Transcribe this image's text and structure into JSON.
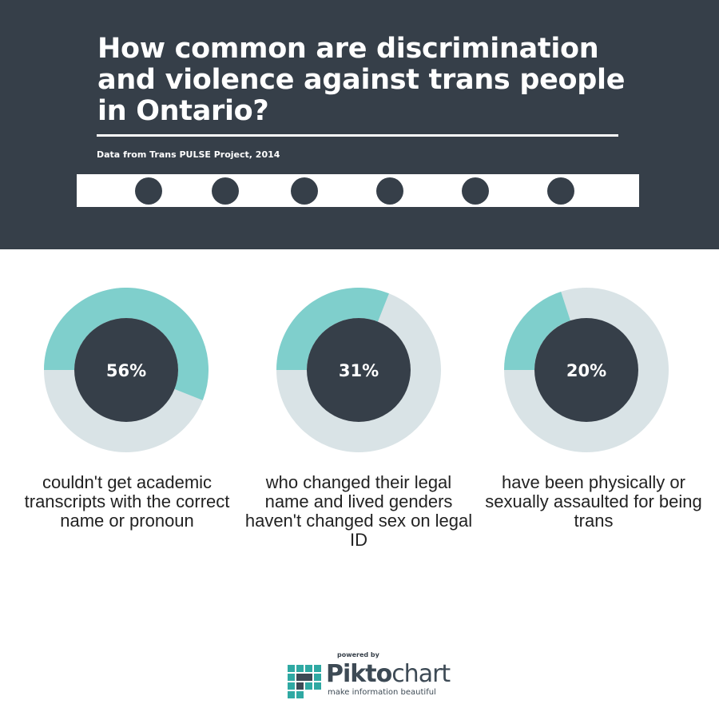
{
  "header": {
    "title": "How common are discrimination and violence against trans people in Ontario?",
    "subtitle": "Data from Trans PULSE Project, 2014",
    "dot_count": 6
  },
  "colors": {
    "header_bg": "#363f49",
    "accent": "#7fcfcc",
    "track": "#d9e3e6",
    "donut_center": "#363f49"
  },
  "chart_data": {
    "type": "pie",
    "items": [
      {
        "value": 56,
        "label": "56%",
        "caption": "couldn't get academic transcripts with the correct name or pronoun"
      },
      {
        "value": 31,
        "label": "31%",
        "caption": "who changed their legal name and lived genders haven't changed sex on legal ID"
      },
      {
        "value": 20,
        "label": "20%",
        "caption": "have been physically or sexually assaulted for being trans"
      }
    ]
  },
  "footer": {
    "powered_by": "powered by",
    "brand_bold": "Pikto",
    "brand_rest": "chart",
    "tagline": "make information beautiful"
  }
}
